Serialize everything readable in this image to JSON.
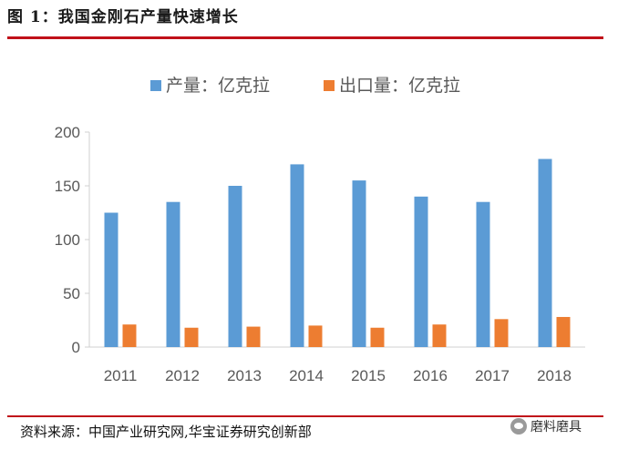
{
  "figure": {
    "title": "图 1：我国金刚石产量快速增长",
    "source": "资料来源：中国产业研究网,华宝证券研究创新部",
    "watermark": "磨料磨具",
    "watermark_icon": "wechat-icon"
  },
  "colors": {
    "accent": "#c0101a",
    "series_production": "#5b9bd5",
    "series_export": "#ed7d31",
    "axis_text": "#595959"
  },
  "chart_data": {
    "type": "bar",
    "title": "",
    "xlabel": "",
    "ylabel": "",
    "categories": [
      "2011",
      "2012",
      "2013",
      "2014",
      "2015",
      "2016",
      "2017",
      "2018"
    ],
    "series": [
      {
        "name": "产量：亿克拉",
        "values": [
          125,
          135,
          150,
          170,
          155,
          140,
          135,
          175
        ]
      },
      {
        "name": "出口量：亿克拉",
        "values": [
          21,
          18,
          19,
          20,
          18,
          21,
          26,
          28
        ]
      }
    ],
    "ylim": [
      0,
      200
    ],
    "yticks": [
      "0",
      "50",
      "100",
      "150",
      "200"
    ],
    "grid": false,
    "legend_position": "top"
  }
}
